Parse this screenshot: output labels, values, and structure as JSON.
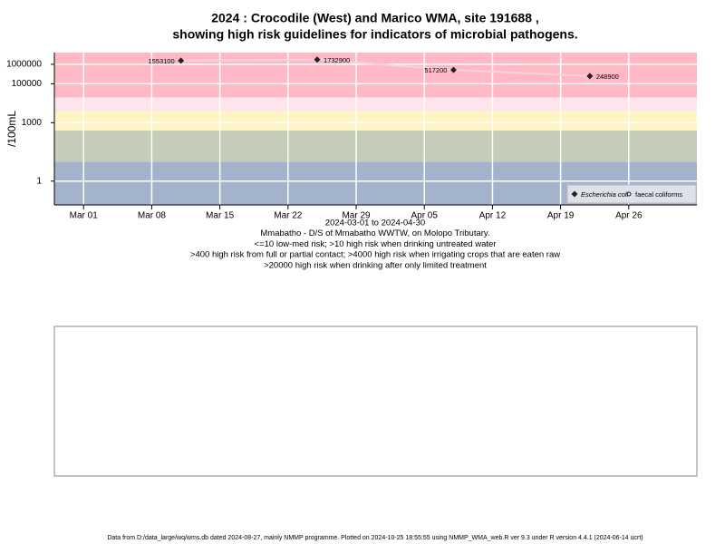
{
  "chart_data": {
    "type": "line",
    "title": "2024 : Crocodile (West) and Marico WMA, site 191688 ,",
    "subtitle": "showing high risk guidelines for indicators of microbial pathogens.",
    "y_label": "/100mL",
    "x_label_lines": [
      "2024-03-01 to 2024-04-30",
      "Mmabatho - D/S of Mmabatho WWTW, on Molopo Tributary.",
      "<=10 low-med risk; >10 high risk when drinking untreated water",
      ">400 high risk from full or partial contact; >4000 high risk when irrigating crops that are eaten raw",
      ">20000 high risk when drinking after only limited treatment"
    ],
    "x": [
      "2024-03-11",
      "2024-03-25",
      "2024-04-08",
      "2024-04-22"
    ],
    "series": [
      {
        "name": "Escherichia coli",
        "color": "#222222",
        "line_color": "#f2d4dc",
        "marker": "diamond",
        "values": [
          1553100,
          1732900,
          517200,
          248900
        ]
      },
      {
        "name": "faecal coliforms",
        "color": "#222222",
        "marker": "circle",
        "values": [
          null,
          null,
          null,
          null
        ]
      }
    ],
    "xlim": [
      "2024-02-27",
      "2024-05-03"
    ],
    "xticks": [
      {
        "value": "2024-03-01",
        "label": "Mar 01"
      },
      {
        "value": "2024-03-08",
        "label": "Mar 08"
      },
      {
        "value": "2024-03-15",
        "label": "Mar 15"
      },
      {
        "value": "2024-03-22",
        "label": "Mar 22"
      },
      {
        "value": "2024-03-29",
        "label": "Mar 29"
      },
      {
        "value": "2024-04-05",
        "label": "Apr 05"
      },
      {
        "value": "2024-04-12",
        "label": "Apr 12"
      },
      {
        "value": "2024-04-19",
        "label": "Apr 19"
      },
      {
        "value": "2024-04-26",
        "label": "Apr 26"
      }
    ],
    "ylim": [
      0.06,
      4000000
    ],
    "yticks": [
      1,
      1000,
      100000,
      1000000
    ],
    "log_y": true,
    "grid": true,
    "risk_thresholds": [
      10,
      400,
      4000,
      20000
    ],
    "band_colors": [
      "#a3b3cc",
      "#c5ccb8",
      "#fff5c4",
      "#fde4ee",
      "#ffb8c4"
    ],
    "legend_position": "bottom-right",
    "footer": "Data from D:/data_large/wq/wms.db dated 2024-08-27, mainly NMMP programme. Plotted on 2024-10-25 18:55:55 using NMMP_WMA_web.R ver 9.3 under R version 4.4.1 (2024-06-14 ucrt)"
  }
}
